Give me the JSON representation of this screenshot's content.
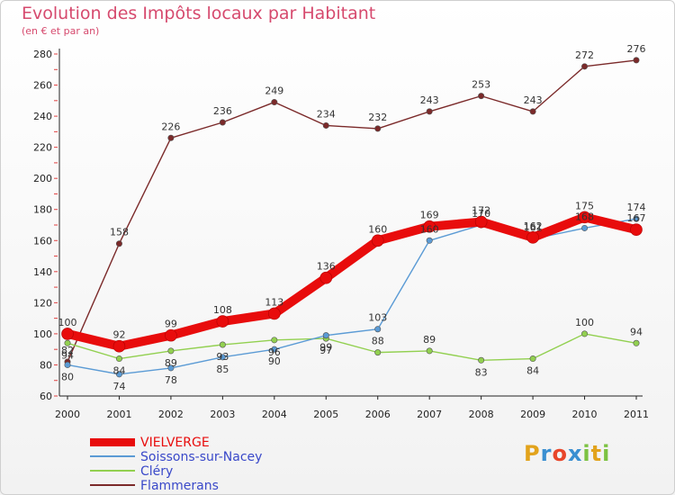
{
  "chart_data": {
    "type": "line",
    "title": "Evolution des Impôts locaux par Habitant",
    "subtitle": "(en € et par an)",
    "xlabel": "",
    "ylabel": "",
    "x": [
      "2000",
      "2001",
      "2002",
      "2003",
      "2004",
      "2005",
      "2006",
      "2007",
      "2008",
      "2009",
      "2010",
      "2011"
    ],
    "ylim": [
      60,
      280
    ],
    "yticks": [
      60,
      80,
      100,
      120,
      140,
      160,
      180,
      200,
      220,
      240,
      260,
      280
    ],
    "grid": false,
    "legend_position": "bottom-left",
    "series": [
      {
        "name": "VIELVERGE",
        "color": "#e80c0c",
        "values": [
          100,
          92,
          99,
          108,
          113,
          136,
          160,
          169,
          172,
          162,
          175,
          167
        ]
      },
      {
        "name": "Soissons-sur-Nacey",
        "color": "#5b9bd5",
        "values": [
          80,
          74,
          78,
          85,
          90,
          99,
          103,
          160,
          170,
          161,
          168,
          174
        ]
      },
      {
        "name": "Cléry",
        "color": "#92d050",
        "values": [
          94,
          84,
          89,
          93,
          96,
          97,
          88,
          89,
          83,
          84,
          100,
          94
        ]
      },
      {
        "name": "Flammerans",
        "color": "#7b2a2a",
        "values": [
          82,
          158,
          226,
          236,
          249,
          234,
          232,
          243,
          253,
          243,
          272,
          276
        ]
      }
    ]
  },
  "logo": {
    "letters": [
      {
        "ch": "P",
        "color": "#e2a31c"
      },
      {
        "ch": "r",
        "color": "#3a8fd1"
      },
      {
        "ch": "o",
        "color": "#e8462a"
      },
      {
        "ch": "x",
        "color": "#3a8fd1"
      },
      {
        "ch": "i",
        "color": "#7cc242"
      },
      {
        "ch": "t",
        "color": "#e2a31c"
      },
      {
        "ch": "i",
        "color": "#7cc242"
      }
    ]
  }
}
